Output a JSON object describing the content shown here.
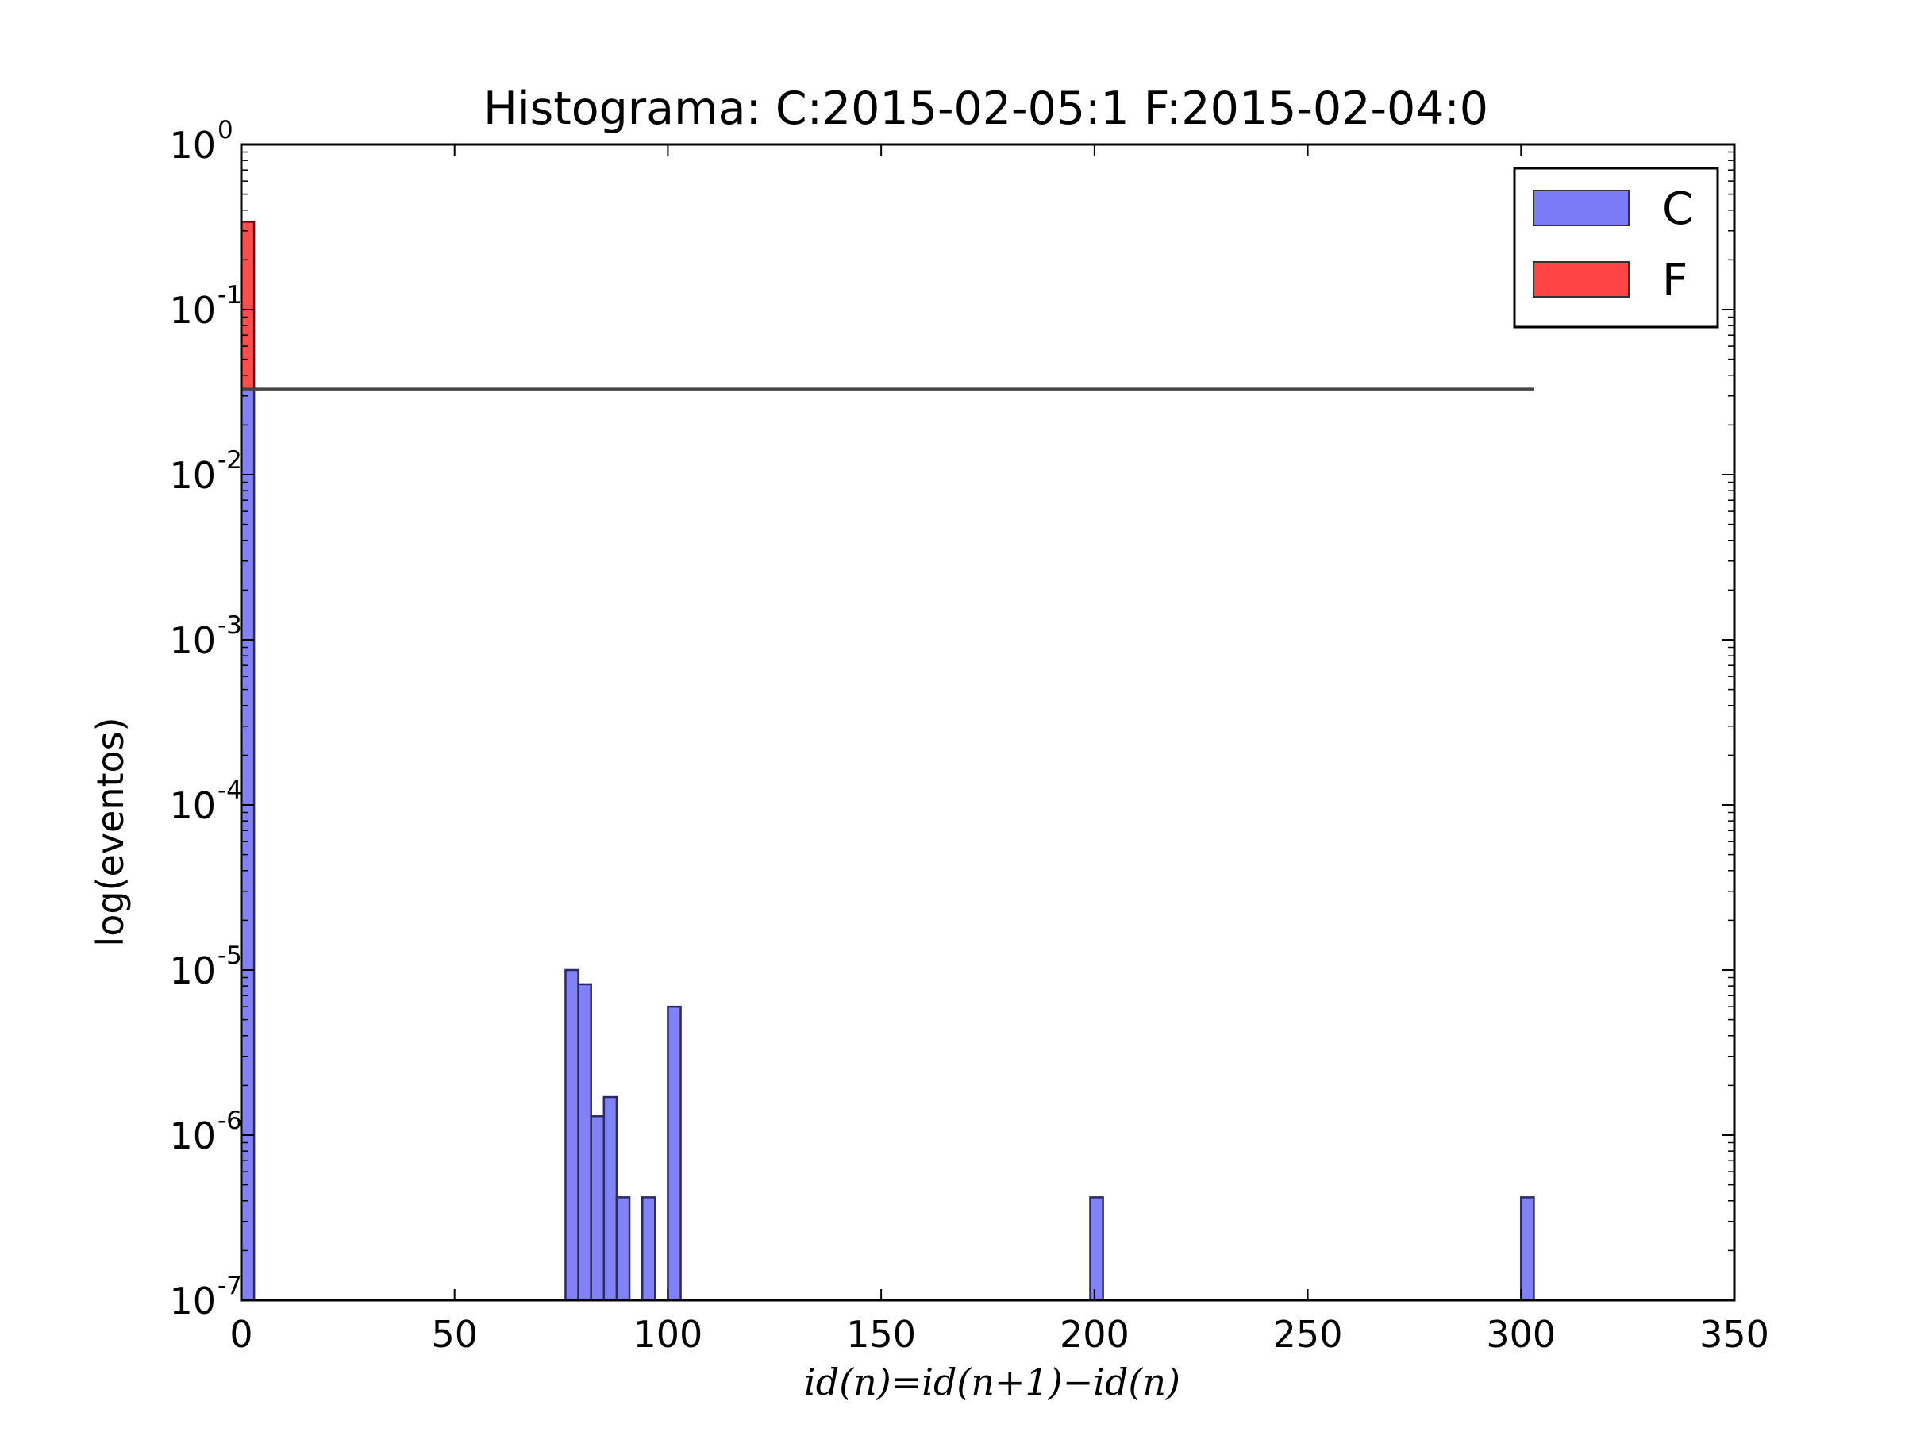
{
  "chart_data": {
    "type": "bar",
    "title": "Histograma: C:2015-02-05:1 F:2015-02-04:0",
    "xlabel": "id(n)=id(n+1)−id(n)",
    "ylabel": "log(eventos)",
    "xlim": [
      0,
      350
    ],
    "ylim": [
      1e-07,
      1
    ],
    "yscale": "log",
    "xticks": [
      0,
      50,
      100,
      150,
      200,
      250,
      300,
      350
    ],
    "yticks": [
      {
        "base": "10",
        "exp": "-7",
        "value": 1e-07
      },
      {
        "base": "10",
        "exp": "-6",
        "value": 1e-06
      },
      {
        "base": "10",
        "exp": "-5",
        "value": 1e-05
      },
      {
        "base": "10",
        "exp": "-4",
        "value": 0.0001
      },
      {
        "base": "10",
        "exp": "-3",
        "value": 0.001
      },
      {
        "base": "10",
        "exp": "-2",
        "value": 0.01
      },
      {
        "base": "10",
        "exp": "-1",
        "value": 0.1
      },
      {
        "base": "10",
        "exp": "0",
        "value": 1
      }
    ],
    "grid": false,
    "legend_position": "top-right",
    "series": [
      {
        "name": "C",
        "color": "#7b7bf7",
        "bins": [
          {
            "x0": 0,
            "x1": 3,
            "value": 0.033
          },
          {
            "x0": 76,
            "x1": 79,
            "value": 1e-05
          },
          {
            "x0": 79,
            "x1": 82,
            "value": 8.2e-06
          },
          {
            "x0": 82,
            "x1": 85,
            "value": 1.3e-06
          },
          {
            "x0": 85,
            "x1": 88,
            "value": 1.7e-06
          },
          {
            "x0": 88,
            "x1": 91,
            "value": 4.2e-07
          },
          {
            "x0": 94,
            "x1": 97,
            "value": 4.2e-07
          },
          {
            "x0": 100,
            "x1": 103,
            "value": 6e-06
          },
          {
            "x0": 199,
            "x1": 202,
            "value": 4.2e-07
          },
          {
            "x0": 300,
            "x1": 303,
            "value": 4.2e-07
          }
        ]
      },
      {
        "name": "F",
        "color": "#ff4444",
        "bins": [
          {
            "x0": 0,
            "x1": 3,
            "value": 0.34
          }
        ]
      }
    ],
    "reference_line": {
      "y": 0.033,
      "x0": 0,
      "x1": 303,
      "color": "#444444"
    }
  }
}
